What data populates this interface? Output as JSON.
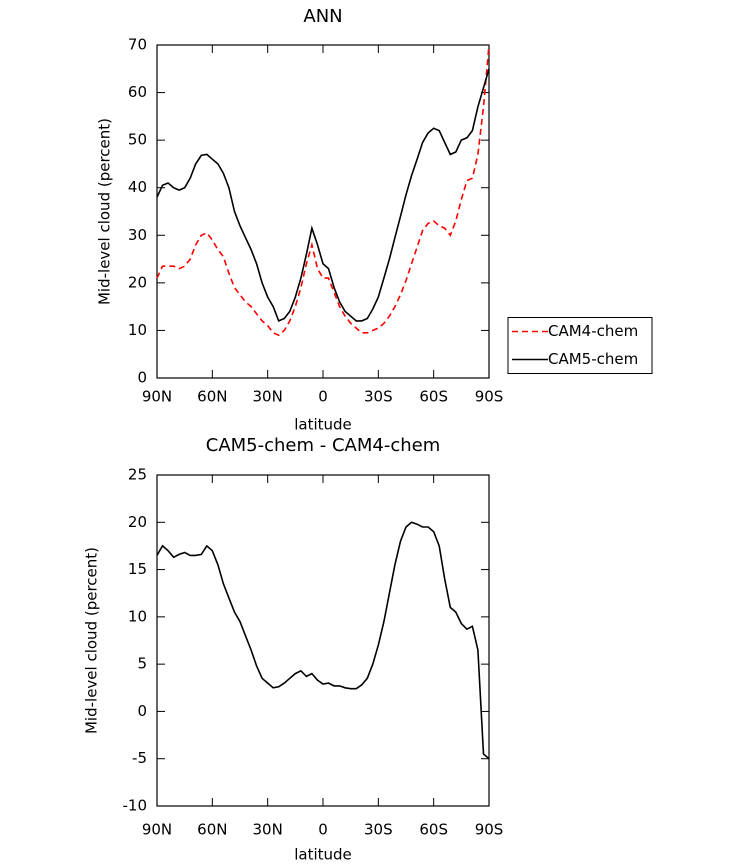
{
  "chart_data": [
    {
      "type": "line",
      "title": "ANN",
      "x_label": "latitude",
      "y_label": "Mid-level cloud (percent)",
      "x": [
        90,
        87,
        84,
        81,
        78,
        75,
        72,
        69,
        66,
        63,
        60,
        57,
        54,
        51,
        48,
        45,
        42,
        39,
        36,
        33,
        30,
        27,
        24,
        21,
        18,
        15,
        12,
        9,
        6,
        3,
        0,
        -3,
        -6,
        -9,
        -12,
        -15,
        -18,
        -21,
        -24,
        -27,
        -30,
        -33,
        -36,
        -39,
        -42,
        -45,
        -48,
        -51,
        -54,
        -57,
        -60,
        -63,
        -66,
        -69,
        -72,
        -75,
        -78,
        -81,
        -84,
        -87,
        -90
      ],
      "xlim": [
        90,
        -90
      ],
      "xticks": [
        {
          "value": 90,
          "label": "90N"
        },
        {
          "value": 60,
          "label": "60N"
        },
        {
          "value": 30,
          "label": "30N"
        },
        0,
        {
          "value": -30,
          "label": "30S"
        },
        {
          "value": -60,
          "label": "60S"
        },
        {
          "value": -90,
          "label": "90S"
        }
      ],
      "ylim": [
        0,
        70
      ],
      "yticks": [
        0,
        10,
        20,
        30,
        40,
        50,
        60,
        70
      ],
      "legend": "right",
      "series": [
        {
          "name": "CAM4-chem",
          "color": "#ff0000",
          "style": "dashed",
          "values": [
            21,
            23.5,
            23.5,
            23.5,
            23,
            23.5,
            25,
            28,
            30,
            30.5,
            29,
            27,
            25.5,
            22,
            19,
            17.5,
            16,
            15,
            13.5,
            12,
            11,
            9.5,
            9,
            10,
            12,
            15,
            19,
            24,
            28,
            23,
            21,
            21,
            18,
            15,
            13,
            11.5,
            10.5,
            9.5,
            9.5,
            10,
            10.5,
            11.5,
            13,
            15,
            17.5,
            20.5,
            24,
            27.5,
            31,
            32.5,
            33,
            32,
            31.5,
            30,
            33,
            37.5,
            41.5,
            42,
            47,
            57,
            70
          ]
        },
        {
          "name": "CAM5-chem",
          "color": "#000000",
          "style": "solid",
          "values": [
            38,
            40.5,
            41,
            40,
            39.5,
            40,
            42,
            45,
            46.8,
            47,
            46,
            45,
            43,
            40,
            35,
            32,
            29.5,
            27,
            24,
            20,
            17,
            15,
            12,
            12.5,
            14,
            17,
            21,
            26,
            31.5,
            28,
            24,
            23,
            19,
            16,
            14,
            13,
            12,
            12,
            12.5,
            14.5,
            17,
            21,
            25,
            29.5,
            34,
            38.5,
            42.5,
            46,
            49.5,
            51.5,
            52.5,
            52,
            49.5,
            47,
            47.5,
            50,
            50.5,
            52,
            57,
            61,
            65
          ]
        }
      ]
    },
    {
      "type": "line",
      "title": "CAM5-chem - CAM4-chem",
      "x_label": "latitude",
      "y_label": "Mid-level cloud (percent)",
      "x": [
        90,
        87,
        84,
        81,
        78,
        75,
        72,
        69,
        66,
        63,
        60,
        57,
        54,
        51,
        48,
        45,
        42,
        39,
        36,
        33,
        30,
        27,
        24,
        21,
        18,
        15,
        12,
        9,
        6,
        3,
        0,
        -3,
        -6,
        -9,
        -12,
        -15,
        -18,
        -21,
        -24,
        -27,
        -30,
        -33,
        -36,
        -39,
        -42,
        -45,
        -48,
        -51,
        -54,
        -57,
        -60,
        -63,
        -66,
        -69,
        -72,
        -75,
        -78,
        -81,
        -84,
        -87,
        -90
      ],
      "xlim": [
        90,
        -90
      ],
      "xticks": [
        {
          "value": 90,
          "label": "90N"
        },
        {
          "value": 60,
          "label": "60N"
        },
        {
          "value": 30,
          "label": "30N"
        },
        0,
        {
          "value": -30,
          "label": "30S"
        },
        {
          "value": -60,
          "label": "60S"
        },
        {
          "value": -90,
          "label": "90S"
        }
      ],
      "ylim": [
        -10,
        25
      ],
      "yticks": [
        -10,
        -5,
        0,
        5,
        10,
        15,
        20,
        25
      ],
      "series": [
        {
          "color": "#000000",
          "style": "solid",
          "values": [
            16.5,
            17.5,
            17,
            16.3,
            16.6,
            16.8,
            16.5,
            16.5,
            16.6,
            17.5,
            17,
            15.5,
            13.5,
            12,
            10.5,
            9.5,
            8,
            6.5,
            4.8,
            3.5,
            3,
            2.5,
            2.6,
            3,
            3.5,
            4,
            4.3,
            3.7,
            4,
            3.3,
            2.9,
            3,
            2.7,
            2.7,
            2.5,
            2.4,
            2.4,
            2.8,
            3.5,
            5,
            7,
            9.5,
            12.5,
            15.5,
            18,
            19.5,
            20,
            19.8,
            19.5,
            19.5,
            19,
            17.5,
            14,
            11,
            10.5,
            9.3,
            8.7,
            9,
            6.5,
            -4.5,
            -5
          ]
        }
      ]
    }
  ]
}
